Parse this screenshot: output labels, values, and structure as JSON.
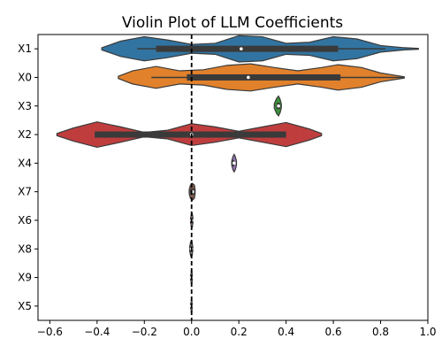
{
  "chart_data": {
    "type": "violin",
    "title": "Violin Plot of LLM Coefficients",
    "xlabel": "",
    "ylabel": "",
    "xlim": [
      -0.65,
      1.0
    ],
    "x_ticks": [
      "−0.6",
      "−0.4",
      "−0.2",
      "0.0",
      "0.2",
      "0.4",
      "0.6",
      "0.8",
      "1.0"
    ],
    "x_tick_values": [
      -0.6,
      -0.4,
      -0.2,
      0.0,
      0.2,
      0.4,
      0.6,
      0.8,
      1.0
    ],
    "reference_line_x": 0.0,
    "categories": [
      "X1",
      "X0",
      "X3",
      "X2",
      "X4",
      "X7",
      "X6",
      "X8",
      "X9",
      "X5"
    ],
    "series": [
      {
        "category": "X1",
        "color": "#3274a1",
        "min": -0.38,
        "max": 0.96,
        "q1": -0.15,
        "q3": 0.62,
        "median": 0.21,
        "whisker": [
          -0.23,
          0.82
        ],
        "density": [
          [
            -0.38,
            0.05
          ],
          [
            -0.3,
            0.35
          ],
          [
            -0.2,
            0.55
          ],
          [
            -0.1,
            0.4
          ],
          [
            0.0,
            0.2
          ],
          [
            0.1,
            0.25
          ],
          [
            0.2,
            0.6
          ],
          [
            0.3,
            0.55
          ],
          [
            0.4,
            0.25
          ],
          [
            0.5,
            0.3
          ],
          [
            0.6,
            0.55
          ],
          [
            0.7,
            0.45
          ],
          [
            0.8,
            0.15
          ],
          [
            0.9,
            0.05
          ],
          [
            0.96,
            0.02
          ]
        ]
      },
      {
        "category": "X0",
        "color": "#e1812c",
        "min": -0.31,
        "max": 0.9,
        "q1": -0.02,
        "q3": 0.63,
        "median": 0.24,
        "whisker": [
          -0.17,
          0.9
        ],
        "density": [
          [
            -0.31,
            0.05
          ],
          [
            -0.25,
            0.3
          ],
          [
            -0.15,
            0.5
          ],
          [
            -0.05,
            0.3
          ],
          [
            0.05,
            0.35
          ],
          [
            0.15,
            0.55
          ],
          [
            0.25,
            0.62
          ],
          [
            0.35,
            0.45
          ],
          [
            0.45,
            0.3
          ],
          [
            0.55,
            0.45
          ],
          [
            0.62,
            0.58
          ],
          [
            0.72,
            0.45
          ],
          [
            0.8,
            0.2
          ],
          [
            0.9,
            0.03
          ]
        ]
      },
      {
        "category": "X3",
        "color": "#3a923a",
        "min": 0.35,
        "max": 0.38,
        "q1": 0.36,
        "q3": 0.375,
        "median": 0.368,
        "whisker": [
          0.355,
          0.38
        ],
        "density": [
          [
            0.35,
            0.1
          ],
          [
            0.36,
            0.35
          ],
          [
            0.368,
            0.45
          ],
          [
            0.375,
            0.3
          ],
          [
            0.38,
            0.08
          ]
        ]
      },
      {
        "category": "X2",
        "color": "#c03d3e",
        "min": -0.57,
        "max": 0.55,
        "q1": -0.41,
        "q3": 0.4,
        "median": 0.0,
        "whisker": [
          -0.41,
          0.4
        ],
        "density": [
          [
            -0.57,
            0.05
          ],
          [
            -0.5,
            0.3
          ],
          [
            -0.4,
            0.58
          ],
          [
            -0.3,
            0.35
          ],
          [
            -0.2,
            0.1
          ],
          [
            -0.1,
            0.2
          ],
          [
            0.0,
            0.5
          ],
          [
            0.1,
            0.35
          ],
          [
            0.2,
            0.15
          ],
          [
            0.3,
            0.35
          ],
          [
            0.4,
            0.55
          ],
          [
            0.5,
            0.25
          ],
          [
            0.55,
            0.05
          ]
        ]
      },
      {
        "category": "X4",
        "color": "#9372b2",
        "min": 0.17,
        "max": 0.19,
        "q1": 0.175,
        "q3": 0.185,
        "median": 0.18,
        "whisker": [
          0.172,
          0.188
        ],
        "density": [
          [
            0.17,
            0.1
          ],
          [
            0.175,
            0.3
          ],
          [
            0.18,
            0.4
          ],
          [
            0.185,
            0.3
          ],
          [
            0.19,
            0.1
          ]
        ]
      },
      {
        "category": "X7",
        "color": "#845b53",
        "min": -0.01,
        "max": 0.015,
        "q1": -0.005,
        "q3": 0.012,
        "median": 0.004,
        "whisker": [
          -0.008,
          0.014
        ],
        "density": [
          [
            -0.01,
            0.1
          ],
          [
            -0.005,
            0.3
          ],
          [
            0.004,
            0.38
          ],
          [
            0.012,
            0.3
          ],
          [
            0.015,
            0.1
          ]
        ]
      },
      {
        "category": "X6",
        "color": "#d684bd",
        "min": -0.004,
        "max": 0.006,
        "q1": -0.001,
        "q3": 0.003,
        "median": 0.001,
        "whisker": [
          -0.003,
          0.005
        ],
        "density": [
          [
            -0.004,
            0.1
          ],
          [
            -0.001,
            0.3
          ],
          [
            0.001,
            0.35
          ],
          [
            0.003,
            0.3
          ],
          [
            0.006,
            0.1
          ]
        ]
      },
      {
        "category": "X8",
        "color": "#7f7f7f",
        "min": -0.008,
        "max": 0.005,
        "q1": -0.004,
        "q3": 0.002,
        "median": -0.001,
        "whisker": [
          -0.007,
          0.004
        ],
        "density": [
          [
            -0.008,
            0.1
          ],
          [
            -0.004,
            0.32
          ],
          [
            -0.001,
            0.38
          ],
          [
            0.002,
            0.3
          ],
          [
            0.005,
            0.1
          ]
        ]
      },
      {
        "category": "X9",
        "color": "#a9aa35",
        "min": -0.003,
        "max": 0.003,
        "q1": -0.001,
        "q3": 0.001,
        "median": 0.0,
        "whisker": [
          -0.002,
          0.002
        ],
        "density": [
          [
            -0.003,
            0.1
          ],
          [
            -0.001,
            0.3
          ],
          [
            0.0,
            0.35
          ],
          [
            0.001,
            0.3
          ],
          [
            0.003,
            0.1
          ]
        ]
      },
      {
        "category": "X5",
        "color": "#2eb0c2",
        "min": -0.002,
        "max": 0.002,
        "q1": -0.001,
        "q3": 0.001,
        "median": 0.0,
        "whisker": [
          -0.002,
          0.002
        ],
        "density": [
          [
            -0.002,
            0.1
          ],
          [
            -0.001,
            0.3
          ],
          [
            0.0,
            0.35
          ],
          [
            0.001,
            0.3
          ],
          [
            0.002,
            0.1
          ]
        ]
      }
    ]
  }
}
